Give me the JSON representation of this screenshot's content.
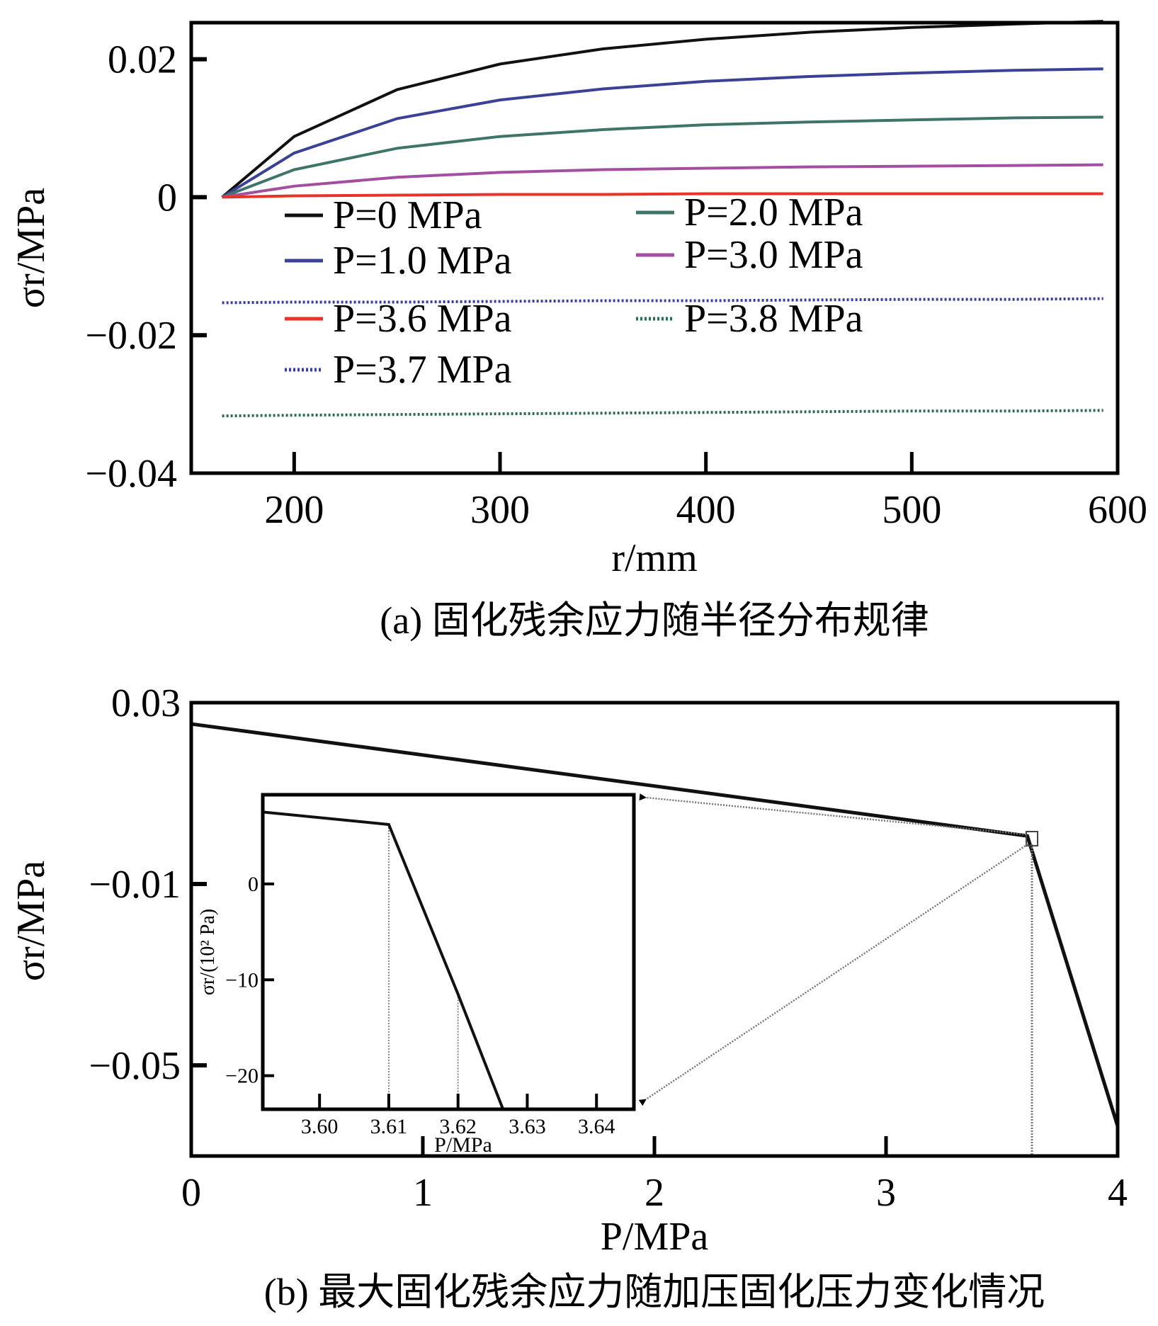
{
  "chart_data": [
    {
      "type": "line",
      "panel": "a",
      "caption": "(a) 固化残余应力随半径分布规律",
      "xlabel": "r/mm",
      "ylabel": "σr/MPa",
      "xlim": [
        150,
        600
      ],
      "ylim": [
        -0.04,
        0.0253
      ],
      "xticks": [
        "200",
        "300",
        "400",
        "500",
        "600"
      ],
      "yticks": [
        "0.02",
        "0",
        "−0.02",
        "−0.04"
      ],
      "ytick_values": [
        0.02,
        0,
        -0.02,
        -0.04
      ],
      "xtick_values": [
        200,
        300,
        400,
        500,
        600
      ],
      "grid": false,
      "legend_placement": "center-left",
      "x": [
        165,
        200,
        250,
        300,
        350,
        400,
        450,
        500,
        550,
        593
      ],
      "series": [
        {
          "name": "P=0 MPa",
          "color": "#111111",
          "style": "solid",
          "values": [
            0,
            0.0088,
            0.0156,
            0.0193,
            0.0215,
            0.0229,
            0.0239,
            0.0246,
            0.0251,
            0.0255
          ]
        },
        {
          "name": "P=1.0 MPa",
          "color": "#3b4197",
          "style": "solid",
          "values": [
            0,
            0.0064,
            0.0114,
            0.0141,
            0.0157,
            0.0168,
            0.0175,
            0.018,
            0.0184,
            0.0186
          ]
        },
        {
          "name": "P=2.0 MPa",
          "color": "#3f7468",
          "style": "solid",
          "values": [
            0,
            0.004,
            0.0071,
            0.0088,
            0.0098,
            0.0105,
            0.0109,
            0.0112,
            0.0115,
            0.0116
          ]
        },
        {
          "name": "P=3.0 MPa",
          "color": "#a34ea0",
          "style": "solid",
          "values": [
            0,
            0.0016,
            0.0029,
            0.0036,
            0.004,
            0.0042,
            0.0044,
            0.0045,
            0.0046,
            0.0047
          ]
        },
        {
          "name": "P=3.6 MPa",
          "color": "#e8332a",
          "style": "solid",
          "values": [
            0,
            0.0002,
            0.0003,
            0.0004,
            0.0004,
            0.0005,
            0.0005,
            0.0005,
            0.0005,
            0.0005
          ]
        },
        {
          "name": "P=3.7 MPa",
          "color": "#3a3f9a",
          "style": "dotted",
          "values": [
            -0.0153,
            -0.0152,
            -0.0152,
            -0.0151,
            -0.015,
            -0.015,
            -0.0149,
            -0.0148,
            -0.0148,
            -0.0147
          ]
        },
        {
          "name": "P=3.8 MPa",
          "color": "#2f6a55",
          "style": "dotted",
          "values": [
            -0.0317,
            -0.0316,
            -0.0315,
            -0.0314,
            -0.0313,
            -0.0312,
            -0.0311,
            -0.031,
            -0.031,
            -0.0309
          ]
        }
      ]
    },
    {
      "type": "line",
      "panel": "b",
      "caption": "(b) 最大固化残余应力随加压固化压力变化情况",
      "xlabel": "P/MPa",
      "ylabel": "σr/MPa",
      "xlim": [
        0,
        4
      ],
      "ylim": [
        -0.07,
        0.03
      ],
      "xticks": [
        "0",
        "1",
        "2",
        "3",
        "4"
      ],
      "xtick_values": [
        0,
        1,
        2,
        3,
        4
      ],
      "yticks": [
        "0.03",
        "−0.01",
        "−0.05"
      ],
      "ytick_values": [
        0.03,
        -0.01,
        -0.05
      ],
      "grid": false,
      "series": [
        {
          "color": "#111111",
          "x": [
            0,
            3.61,
            4
          ],
          "values": [
            0.0253,
            0.0006,
            -0.0634
          ]
        }
      ],
      "zoom_marker": {
        "x": 3.63
      },
      "inset": {
        "xlabel": "P/MPa",
        "ylabel": "σr/(10² Pa)",
        "xlim": [
          3.5918,
          3.6454
        ],
        "ylim": [
          -23.5,
          9.3
        ],
        "xticks": [
          "3.60",
          "3.61",
          "3.62",
          "3.63",
          "3.64"
        ],
        "xtick_values": [
          3.6,
          3.61,
          3.62,
          3.63,
          3.64
        ],
        "yticks": [
          "0",
          "−10",
          "−20"
        ],
        "ytick_values": [
          0,
          -10,
          -20
        ],
        "x": [
          3.5918,
          3.61,
          3.62,
          3.6265
        ],
        "values": [
          7.5,
          6.2,
          -11.5,
          -23.5
        ],
        "guide_lines_x": [
          3.61,
          3.62
        ]
      }
    }
  ]
}
